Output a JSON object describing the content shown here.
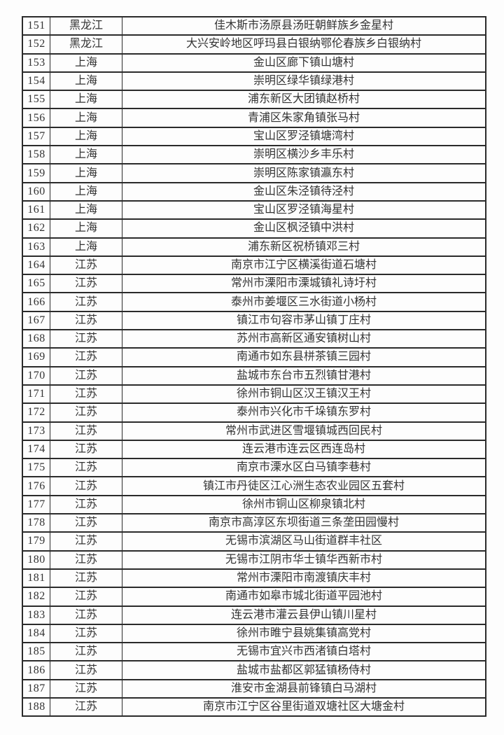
{
  "rows": [
    {
      "num": "151",
      "province": "黑龙江",
      "village": "佳木斯市汤原县汤旺朝鲜族乡金星村"
    },
    {
      "num": "152",
      "province": "黑龙江",
      "village": "大兴安岭地区呼玛县白银纳鄂伦春族乡白银纳村"
    },
    {
      "num": "153",
      "province": "上海",
      "village": "金山区廊下镇山塘村"
    },
    {
      "num": "154",
      "province": "上海",
      "village": "崇明区绿华镇绿港村"
    },
    {
      "num": "155",
      "province": "上海",
      "village": "浦东新区大团镇赵桥村"
    },
    {
      "num": "156",
      "province": "上海",
      "village": "青浦区朱家角镇张马村"
    },
    {
      "num": "157",
      "province": "上海",
      "village": "宝山区罗泾镇塘湾村"
    },
    {
      "num": "158",
      "province": "上海",
      "village": "崇明区横沙乡丰乐村"
    },
    {
      "num": "159",
      "province": "上海",
      "village": "崇明区陈家镇瀛东村"
    },
    {
      "num": "160",
      "province": "上海",
      "village": "金山区朱泾镇待泾村"
    },
    {
      "num": "161",
      "province": "上海",
      "village": "宝山区罗泾镇海星村"
    },
    {
      "num": "162",
      "province": "上海",
      "village": "金山区枫泾镇中洪村"
    },
    {
      "num": "163",
      "province": "上海",
      "village": "浦东新区祝桥镇邓三村"
    },
    {
      "num": "164",
      "province": "江苏",
      "village": "南京市江宁区横溪街道石塘村"
    },
    {
      "num": "165",
      "province": "江苏",
      "village": "常州市溧阳市溧城镇礼诗圩村"
    },
    {
      "num": "166",
      "province": "江苏",
      "village": "泰州市姜堰区三水街道小杨村"
    },
    {
      "num": "167",
      "province": "江苏",
      "village": "镇江市句容市茅山镇丁庄村"
    },
    {
      "num": "168",
      "province": "江苏",
      "village": "苏州市高新区通安镇树山村"
    },
    {
      "num": "169",
      "province": "江苏",
      "village": "南通市如东县栟茶镇三园村"
    },
    {
      "num": "170",
      "province": "江苏",
      "village": "盐城市东台市五烈镇甘港村"
    },
    {
      "num": "171",
      "province": "江苏",
      "village": "徐州市铜山区汉王镇汉王村"
    },
    {
      "num": "172",
      "province": "江苏",
      "village": "泰州市兴化市千垛镇东罗村"
    },
    {
      "num": "173",
      "province": "江苏",
      "village": "常州市武进区雪堰镇城西回民村"
    },
    {
      "num": "174",
      "province": "江苏",
      "village": "连云港市连云区西连岛村"
    },
    {
      "num": "175",
      "province": "江苏",
      "village": "南京市溧水区白马镇李巷村"
    },
    {
      "num": "176",
      "province": "江苏",
      "village": "镇江市丹徒区江心洲生态农业园区五套村"
    },
    {
      "num": "177",
      "province": "江苏",
      "village": "徐州市铜山区柳泉镇北村"
    },
    {
      "num": "178",
      "province": "江苏",
      "village": "南京市高淳区东坝街道三条垄田园慢村"
    },
    {
      "num": "179",
      "province": "江苏",
      "village": "无锡市滨湖区马山街道群丰社区"
    },
    {
      "num": "180",
      "province": "江苏",
      "village": "无锡市江阴市华士镇华西新市村"
    },
    {
      "num": "181",
      "province": "江苏",
      "village": "常州市溧阳市南渡镇庆丰村"
    },
    {
      "num": "182",
      "province": "江苏",
      "village": "南通市如皋市城北街道平园池村"
    },
    {
      "num": "183",
      "province": "江苏",
      "village": "连云港市灌云县伊山镇川星村"
    },
    {
      "num": "184",
      "province": "江苏",
      "village": "徐州市睢宁县姚集镇高党村"
    },
    {
      "num": "185",
      "province": "江苏",
      "village": "无锡市宜兴市西渚镇白塔村"
    },
    {
      "num": "186",
      "province": "江苏",
      "village": "盐城市盐都区郭猛镇杨侍村"
    },
    {
      "num": "187",
      "province": "江苏",
      "village": "淮安市金湖县前锋镇白马湖村"
    },
    {
      "num": "188",
      "province": "江苏",
      "village": "南京市江宁区谷里街道双塘社区大塘金村"
    }
  ]
}
